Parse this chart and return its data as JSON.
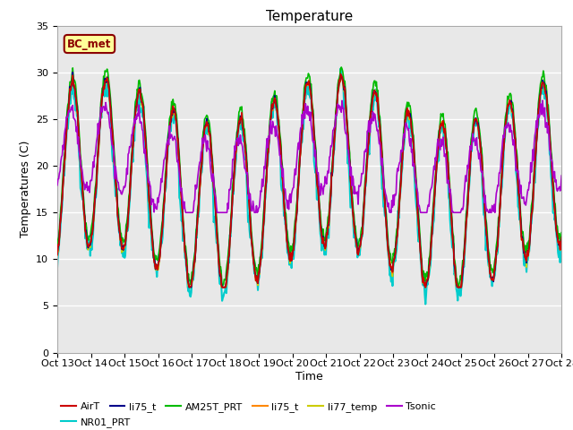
{
  "title": "Temperature",
  "xlabel": "Time",
  "ylabel": "Temperatures (C)",
  "ylim": [
    0,
    35
  ],
  "bg_color": "#ffffff",
  "plot_bg_color": "#e8e8e8",
  "annotation_text": "BC_met",
  "annotation_color": "#8b0000",
  "annotation_bg": "#ffff99",
  "xtick_labels": [
    "Oct 13",
    "Oct 14",
    "Oct 15",
    "Oct 16",
    "Oct 17",
    "Oct 18",
    "Oct 19",
    "Oct 20",
    "Oct 21",
    "Oct 22",
    "Oct 23",
    "Oct 24",
    "Oct 25",
    "Oct 26",
    "Oct 27",
    "Oct 28"
  ],
  "ytick_labels": [
    0,
    5,
    10,
    15,
    20,
    25,
    30,
    35
  ],
  "series": {
    "AirT": {
      "color": "#cc0000",
      "lw": 1.2
    },
    "li75_blue": {
      "color": "#00008b",
      "lw": 1.2
    },
    "AM25T_PRT": {
      "color": "#00bb00",
      "lw": 1.2
    },
    "li75_orange": {
      "color": "#ff8800",
      "lw": 1.2
    },
    "li77_temp": {
      "color": "#cccc00",
      "lw": 1.2
    },
    "Tsonic": {
      "color": "#aa00cc",
      "lw": 1.2
    },
    "NR01_PRT": {
      "color": "#00cccc",
      "lw": 1.5
    }
  },
  "legend_entries": [
    {
      "label": "AirT",
      "color": "#cc0000"
    },
    {
      "label": "li75_t",
      "color": "#00008b"
    },
    {
      "label": "AM25T_PRT",
      "color": "#00bb00"
    },
    {
      "label": "li75_t",
      "color": "#ff8800"
    },
    {
      "label": "li77_temp",
      "color": "#cccc00"
    },
    {
      "label": "Tsonic",
      "color": "#aa00cc"
    },
    {
      "label": "NR01_PRT",
      "color": "#00cccc"
    }
  ]
}
